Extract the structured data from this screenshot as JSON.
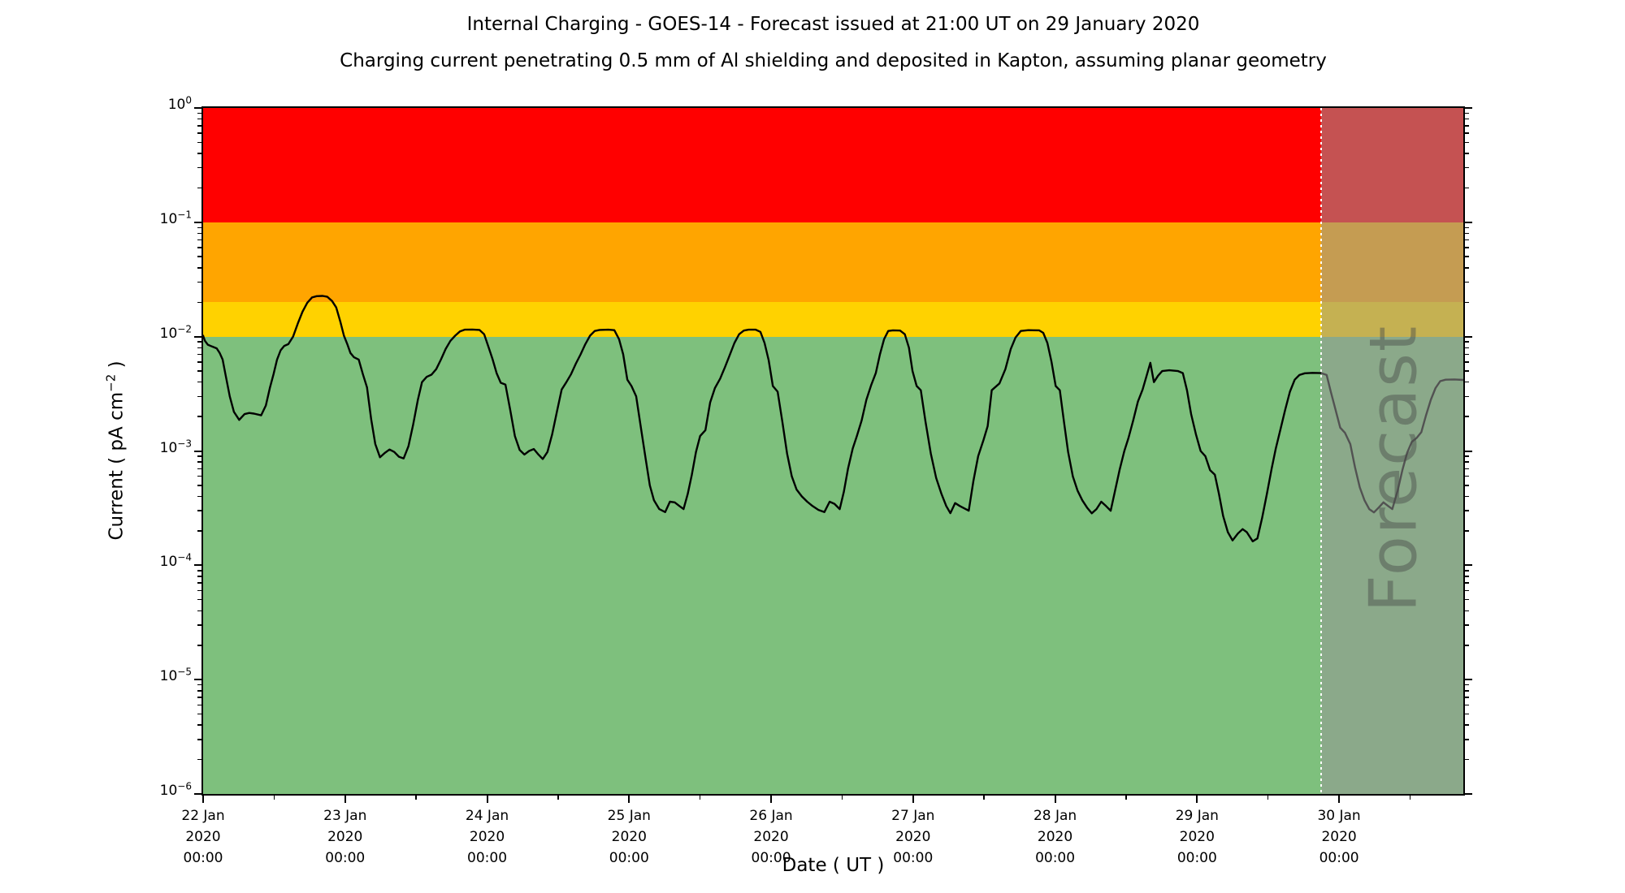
{
  "title": "Internal Charging - GOES-14 - Forecast issued at 21:00 UT on 29 January 2020",
  "subtitle": "Charging current penetrating 0.5 mm of Al shielding and deposited in Kapton, assuming planar geometry",
  "watermark": "Forecast",
  "ylabel_parts": {
    "prefix": "Current ( pA cm",
    "sup": "−2",
    "suffix": " )"
  },
  "chart_data": {
    "type": "line",
    "title": "Internal Charging - GOES-14 - Forecast issued at 21:00 UT on 29 January 2020",
    "subtitle": "Charging current penetrating 0.5 mm of Al shielding and deposited in Kapton, assuming planar geometry",
    "xlabel": "Date ( UT )",
    "ylabel": "Current ( pA cm⁻² )",
    "y_scale": "log",
    "ylim": [
      1e-06,
      1
    ],
    "x_unit": "hours since 22 Jan 2020 00:00 UT",
    "x_range_hours": [
      0,
      213
    ],
    "grid": false,
    "legend": "none",
    "y_major_tick_exponents": [
      0,
      -1,
      -2,
      -3,
      -4,
      -5,
      -6
    ],
    "y_minor_tick_multiples": [
      2,
      3,
      4,
      5,
      6,
      7,
      8,
      9
    ],
    "x_major_ticks": [
      {
        "hours": 0,
        "lines": [
          "22 Jan",
          "2020",
          "00:00"
        ]
      },
      {
        "hours": 24,
        "lines": [
          "23 Jan",
          "2020",
          "00:00"
        ]
      },
      {
        "hours": 48,
        "lines": [
          "24 Jan",
          "2020",
          "00:00"
        ]
      },
      {
        "hours": 72,
        "lines": [
          "25 Jan",
          "2020",
          "00:00"
        ]
      },
      {
        "hours": 96,
        "lines": [
          "26 Jan",
          "2020",
          "00:00"
        ]
      },
      {
        "hours": 120,
        "lines": [
          "27 Jan",
          "2020",
          "00:00"
        ]
      },
      {
        "hours": 144,
        "lines": [
          "28 Jan",
          "2020",
          "00:00"
        ]
      },
      {
        "hours": 168,
        "lines": [
          "29 Jan",
          "2020",
          "00:00"
        ]
      },
      {
        "hours": 192,
        "lines": [
          "30 Jan",
          "2020",
          "00:00"
        ]
      }
    ],
    "x_minor_tick_hours": [
      12,
      36,
      60,
      84,
      108,
      132,
      156,
      180,
      204
    ],
    "bands": [
      {
        "name": "red",
        "from": 0.1,
        "to": 1.0,
        "color": "#ff0000"
      },
      {
        "name": "orange",
        "from": 0.02,
        "to": 0.1,
        "color": "#ffa500"
      },
      {
        "name": "gold",
        "from": 0.01,
        "to": 0.02,
        "color": "#ffd200"
      },
      {
        "name": "green",
        "from": 1e-06,
        "to": 0.01,
        "color": "#7ec07d"
      }
    ],
    "forecast": {
      "label": "Forecast",
      "start_hours": 189,
      "start_label": "29 Jan 2020 21:00 UT",
      "overlay_color": "rgba(150,150,150,0.55)",
      "divider_color": "#ffffff"
    },
    "series": [
      {
        "name": "charging-current",
        "color": "#000000",
        "points": [
          [
            0,
            0.0102
          ],
          [
            0.3,
            0.0092
          ],
          [
            0.8,
            0.0085
          ],
          [
            1.5,
            0.0082
          ],
          [
            2.3,
            0.0079
          ],
          [
            2.8,
            0.0072
          ],
          [
            3.3,
            0.0063
          ],
          [
            3.8,
            0.0046
          ],
          [
            4.5,
            0.003
          ],
          [
            5.2,
            0.0022
          ],
          [
            6.1,
            0.00187
          ],
          [
            7.0,
            0.0021
          ],
          [
            7.8,
            0.00215
          ],
          [
            8.6,
            0.00212
          ],
          [
            9.8,
            0.00205
          ],
          [
            10.6,
            0.0025
          ],
          [
            11.3,
            0.0036
          ],
          [
            11.9,
            0.0047
          ],
          [
            12.5,
            0.0063
          ],
          [
            13.1,
            0.0076
          ],
          [
            13.7,
            0.0083
          ],
          [
            14.4,
            0.0086
          ],
          [
            15.2,
            0.01
          ],
          [
            16.0,
            0.013
          ],
          [
            16.8,
            0.0165
          ],
          [
            17.6,
            0.0198
          ],
          [
            18.4,
            0.022
          ],
          [
            19.2,
            0.0226
          ],
          [
            20.2,
            0.0227
          ],
          [
            21.0,
            0.0223
          ],
          [
            21.8,
            0.0205
          ],
          [
            22.5,
            0.018
          ],
          [
            23.2,
            0.0135
          ],
          [
            23.8,
            0.0102
          ],
          [
            24.4,
            0.0085
          ],
          [
            24.9,
            0.0072
          ],
          [
            25.5,
            0.0066
          ],
          [
            26.3,
            0.0063
          ],
          [
            27.0,
            0.0047
          ],
          [
            27.7,
            0.0036
          ],
          [
            28.4,
            0.0019
          ],
          [
            29.1,
            0.00115
          ],
          [
            29.9,
            0.00088
          ],
          [
            30.7,
            0.00096
          ],
          [
            31.5,
            0.00103
          ],
          [
            32.3,
            0.00098
          ],
          [
            33.1,
            0.00089
          ],
          [
            33.9,
            0.00086
          ],
          [
            34.7,
            0.0011
          ],
          [
            35.5,
            0.0017
          ],
          [
            36.3,
            0.0028
          ],
          [
            37.0,
            0.004
          ],
          [
            37.8,
            0.00445
          ],
          [
            38.6,
            0.00465
          ],
          [
            39.4,
            0.0052
          ],
          [
            40.2,
            0.0063
          ],
          [
            41.0,
            0.0078
          ],
          [
            41.8,
            0.0092
          ],
          [
            42.6,
            0.0102
          ],
          [
            43.4,
            0.0111
          ],
          [
            44.2,
            0.0115
          ],
          [
            45.5,
            0.01155
          ],
          [
            46.7,
            0.01145
          ],
          [
            47.5,
            0.0105
          ],
          [
            48.2,
            0.0082
          ],
          [
            48.9,
            0.0064
          ],
          [
            49.6,
            0.0048
          ],
          [
            50.3,
            0.00395
          ],
          [
            51.1,
            0.0038
          ],
          [
            51.9,
            0.0023
          ],
          [
            52.7,
            0.00135
          ],
          [
            53.5,
            0.00102
          ],
          [
            54.3,
            0.00093
          ],
          [
            55.1,
            0.001
          ],
          [
            55.9,
            0.00104
          ],
          [
            56.6,
            0.00094
          ],
          [
            57.4,
            0.00085
          ],
          [
            58.2,
            0.00098
          ],
          [
            59.0,
            0.0014
          ],
          [
            59.8,
            0.0022
          ],
          [
            60.6,
            0.00345
          ],
          [
            61.4,
            0.004
          ],
          [
            62.2,
            0.0047
          ],
          [
            63.0,
            0.0058
          ],
          [
            63.8,
            0.007
          ],
          [
            64.6,
            0.0086
          ],
          [
            65.4,
            0.0102
          ],
          [
            66.2,
            0.0112
          ],
          [
            67.0,
            0.01145
          ],
          [
            68.5,
            0.0115
          ],
          [
            69.5,
            0.0114
          ],
          [
            70.3,
            0.0095
          ],
          [
            71.0,
            0.007
          ],
          [
            71.7,
            0.0042
          ],
          [
            72.4,
            0.0037
          ],
          [
            73.2,
            0.003
          ],
          [
            74.0,
            0.0016
          ],
          [
            74.8,
            0.00085
          ],
          [
            75.5,
            0.0005
          ],
          [
            76.2,
            0.00037
          ],
          [
            77.1,
            0.00031
          ],
          [
            78.1,
            0.000292
          ],
          [
            78.9,
            0.00036
          ],
          [
            79.7,
            0.000355
          ],
          [
            80.5,
            0.00033
          ],
          [
            81.2,
            0.00031
          ],
          [
            81.9,
            0.00042
          ],
          [
            82.6,
            0.00062
          ],
          [
            83.3,
            0.00098
          ],
          [
            84.0,
            0.00135
          ],
          [
            84.9,
            0.00152
          ],
          [
            85.7,
            0.00265
          ],
          [
            86.5,
            0.00355
          ],
          [
            87.4,
            0.0043
          ],
          [
            88.2,
            0.0054
          ],
          [
            89.0,
            0.0069
          ],
          [
            89.8,
            0.0088
          ],
          [
            90.6,
            0.0105
          ],
          [
            91.4,
            0.0113
          ],
          [
            92.2,
            0.0115
          ],
          [
            93.4,
            0.0115
          ],
          [
            94.2,
            0.011
          ],
          [
            94.9,
            0.0088
          ],
          [
            95.6,
            0.0062
          ],
          [
            96.3,
            0.0037
          ],
          [
            97.1,
            0.0033
          ],
          [
            97.9,
            0.0018
          ],
          [
            98.7,
            0.00095
          ],
          [
            99.5,
            0.0006
          ],
          [
            100.3,
            0.00046
          ],
          [
            101.2,
            0.0004
          ],
          [
            102.1,
            0.00036
          ],
          [
            103.0,
            0.00033
          ],
          [
            104.0,
            0.000305
          ],
          [
            105.0,
            0.000292
          ],
          [
            105.9,
            0.00036
          ],
          [
            106.7,
            0.000345
          ],
          [
            107.6,
            0.00031
          ],
          [
            108.3,
            0.00044
          ],
          [
            109.0,
            0.0007
          ],
          [
            109.8,
            0.00105
          ],
          [
            110.5,
            0.00135
          ],
          [
            111.3,
            0.00185
          ],
          [
            112.1,
            0.0028
          ],
          [
            112.9,
            0.00375
          ],
          [
            113.7,
            0.0048
          ],
          [
            114.4,
            0.007
          ],
          [
            115.1,
            0.0095
          ],
          [
            115.8,
            0.0112
          ],
          [
            116.6,
            0.01135
          ],
          [
            117.8,
            0.0113
          ],
          [
            118.6,
            0.0105
          ],
          [
            119.3,
            0.008
          ],
          [
            119.9,
            0.005
          ],
          [
            120.6,
            0.0037
          ],
          [
            121.3,
            0.0034
          ],
          [
            122.1,
            0.0018
          ],
          [
            123.0,
            0.00095
          ],
          [
            123.9,
            0.00058
          ],
          [
            124.8,
            0.00042
          ],
          [
            125.6,
            0.00033
          ],
          [
            126.3,
            0.000286
          ],
          [
            127.1,
            0.00035
          ],
          [
            127.9,
            0.00033
          ],
          [
            129.4,
            0.0003
          ],
          [
            130.2,
            0.00055
          ],
          [
            131.0,
            0.0009
          ],
          [
            131.9,
            0.00125
          ],
          [
            132.6,
            0.00165
          ],
          [
            133.3,
            0.0034
          ],
          [
            134.6,
            0.0039
          ],
          [
            135.6,
            0.0052
          ],
          [
            136.5,
            0.0078
          ],
          [
            137.3,
            0.0098
          ],
          [
            138.2,
            0.0112
          ],
          [
            139.5,
            0.0114
          ],
          [
            141.3,
            0.01135
          ],
          [
            142.0,
            0.0108
          ],
          [
            142.7,
            0.0088
          ],
          [
            143.4,
            0.006
          ],
          [
            144.1,
            0.0037
          ],
          [
            144.8,
            0.0034
          ],
          [
            145.5,
            0.0018
          ],
          [
            146.2,
            0.00098
          ],
          [
            147.0,
            0.0006
          ],
          [
            147.8,
            0.00045
          ],
          [
            148.6,
            0.00037
          ],
          [
            149.4,
            0.00032
          ],
          [
            150.2,
            0.000285
          ],
          [
            151.0,
            0.00031
          ],
          [
            151.8,
            0.00036
          ],
          [
            152.6,
            0.00033
          ],
          [
            153.4,
            0.0003
          ],
          [
            154.1,
            0.00044
          ],
          [
            154.9,
            0.00068
          ],
          [
            155.7,
            0.001
          ],
          [
            156.4,
            0.0013
          ],
          [
            157.2,
            0.00185
          ],
          [
            158.0,
            0.0027
          ],
          [
            158.8,
            0.00345
          ],
          [
            159.5,
            0.0046
          ],
          [
            160.1,
            0.0059
          ],
          [
            160.7,
            0.004
          ],
          [
            161.4,
            0.00455
          ],
          [
            162.1,
            0.005
          ],
          [
            163.3,
            0.00508
          ],
          [
            164.8,
            0.005
          ],
          [
            165.6,
            0.0048
          ],
          [
            166.3,
            0.0034
          ],
          [
            167.0,
            0.0021
          ],
          [
            167.8,
            0.0014
          ],
          [
            168.6,
            0.001
          ],
          [
            169.4,
            0.0009
          ],
          [
            170.2,
            0.00068
          ],
          [
            171.0,
            0.00062
          ],
          [
            171.7,
            0.00042
          ],
          [
            172.4,
            0.00027
          ],
          [
            173.2,
            0.000195
          ],
          [
            174.0,
            0.000165
          ],
          [
            174.9,
            0.00019
          ],
          [
            175.7,
            0.000207
          ],
          [
            176.4,
            0.000195
          ],
          [
            177.4,
            0.000162
          ],
          [
            178.2,
            0.000172
          ],
          [
            179.0,
            0.00026
          ],
          [
            179.8,
            0.00042
          ],
          [
            180.6,
            0.0007
          ],
          [
            181.3,
            0.00105
          ],
          [
            182.1,
            0.00155
          ],
          [
            182.9,
            0.0023
          ],
          [
            183.7,
            0.0033
          ],
          [
            184.5,
            0.0042
          ],
          [
            185.3,
            0.00462
          ],
          [
            186.2,
            0.00478
          ],
          [
            187.5,
            0.00482
          ],
          [
            189.0,
            0.0048
          ],
          [
            189.9,
            0.00462
          ],
          [
            190.6,
            0.0033
          ],
          [
            191.4,
            0.0023
          ],
          [
            192.2,
            0.0016
          ],
          [
            193.0,
            0.00144
          ],
          [
            193.9,
            0.00115
          ],
          [
            194.7,
            0.00072
          ],
          [
            195.5,
            0.00048
          ],
          [
            196.3,
            0.00037
          ],
          [
            197.1,
            0.00031
          ],
          [
            197.9,
            0.00029
          ],
          [
            198.7,
            0.00032
          ],
          [
            199.5,
            0.000355
          ],
          [
            200.3,
            0.00033
          ],
          [
            201.0,
            0.00031
          ],
          [
            201.9,
            0.00045
          ],
          [
            202.7,
            0.00068
          ],
          [
            203.5,
            0.00096
          ],
          [
            204.3,
            0.0012
          ],
          [
            205.1,
            0.0013
          ],
          [
            205.9,
            0.00146
          ],
          [
            206.7,
            0.00205
          ],
          [
            207.5,
            0.0028
          ],
          [
            208.3,
            0.00355
          ],
          [
            209.1,
            0.00408
          ],
          [
            210.0,
            0.0042
          ],
          [
            211.5,
            0.00422
          ],
          [
            213.0,
            0.00418
          ]
        ]
      }
    ]
  },
  "style": {
    "spine_color": "#000000",
    "tick_color": "#000000",
    "line_width": 2.4,
    "watermark_color": "rgba(70,74,70,0.45)"
  }
}
